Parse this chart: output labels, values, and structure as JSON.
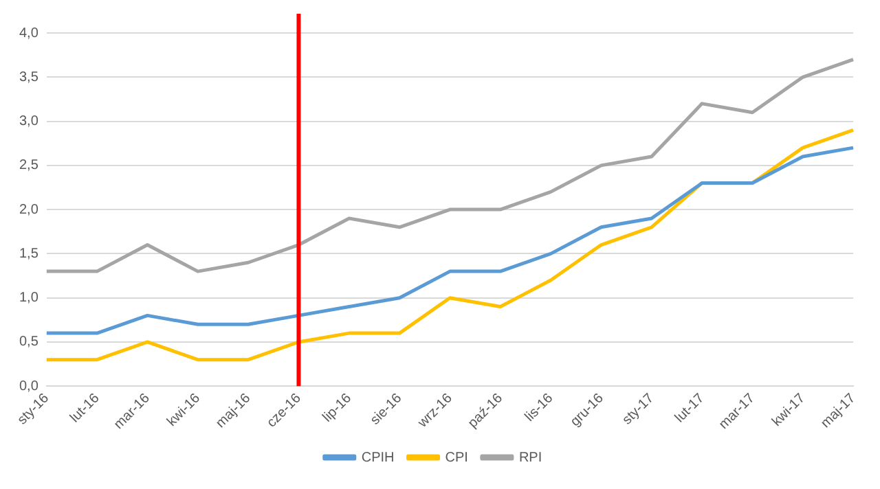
{
  "chart_data": {
    "type": "line",
    "categories": [
      "sty-16",
      "lut-16",
      "mar-16",
      "kwi-16",
      "maj-16",
      "cze-16",
      "lip-16",
      "sie-16",
      "wrz-16",
      "paź-16",
      "lis-16",
      "gru-16",
      "sty-17",
      "lut-17",
      "mar-17",
      "kwi-17",
      "maj-17"
    ],
    "series": [
      {
        "name": "CPIH",
        "color": "#5b9bd5",
        "values": [
          0.6,
          0.6,
          0.8,
          0.7,
          0.7,
          0.8,
          0.9,
          1.0,
          1.3,
          1.3,
          1.5,
          1.8,
          1.9,
          2.3,
          2.3,
          2.6,
          2.7
        ]
      },
      {
        "name": "CPI",
        "color": "#ffc000",
        "values": [
          0.3,
          0.3,
          0.5,
          0.3,
          0.3,
          0.5,
          0.6,
          0.6,
          1.0,
          0.9,
          1.2,
          1.6,
          1.8,
          2.3,
          2.3,
          2.7,
          2.9
        ]
      },
      {
        "name": "RPI",
        "color": "#a5a5a5",
        "values": [
          1.3,
          1.3,
          1.6,
          1.3,
          1.4,
          1.6,
          1.9,
          1.8,
          2.0,
          2.0,
          2.2,
          2.5,
          2.6,
          3.2,
          3.1,
          3.5,
          3.7
        ]
      }
    ],
    "ylim": [
      0,
      4
    ],
    "yticks": [
      {
        "value": 0,
        "label": "0,0"
      },
      {
        "value": 0.5,
        "label": "0,5"
      },
      {
        "value": 1,
        "label": "1,0"
      },
      {
        "value": 1.5,
        "label": "1,5"
      },
      {
        "value": 2,
        "label": "2,0"
      },
      {
        "value": 2.5,
        "label": "2,5"
      },
      {
        "value": 3,
        "label": "3,0"
      },
      {
        "value": 3.5,
        "label": "3,5"
      },
      {
        "value": 4,
        "label": "4,0"
      }
    ],
    "ref_lines": [
      {
        "axis": "x",
        "value": "cze-16",
        "color": "#ff0000"
      }
    ],
    "grid": "y",
    "legend": "bottom",
    "marker": "none",
    "line_style": "solid"
  }
}
